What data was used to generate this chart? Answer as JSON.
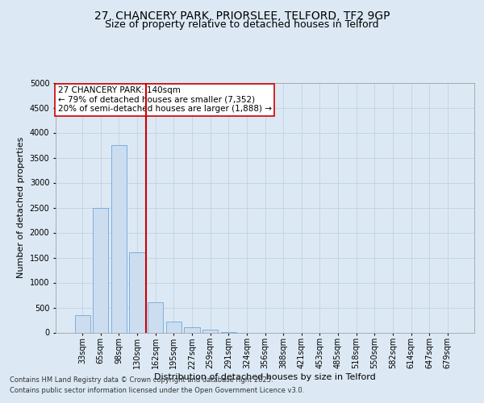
{
  "title1": "27, CHANCERY PARK, PRIORSLEE, TELFORD, TF2 9GP",
  "title2": "Size of property relative to detached houses in Telford",
  "xlabel": "Distribution of detached houses by size in Telford",
  "ylabel": "Number of detached properties",
  "footnote1": "Contains HM Land Registry data © Crown copyright and database right 2025.",
  "footnote2": "Contains public sector information licensed under the Open Government Licence v3.0.",
  "annotation_line1": "27 CHANCERY PARK: 140sqm",
  "annotation_line2": "← 79% of detached houses are smaller (7,352)",
  "annotation_line3": "20% of semi-detached houses are larger (1,888) →",
  "bar_color": "#ccddf0",
  "bar_edge_color": "#5b9bd5",
  "vline_color": "#cc0000",
  "vline_x": 3.5,
  "background_color": "#dce9f5",
  "categories": [
    "33sqm",
    "65sqm",
    "98sqm",
    "130sqm",
    "162sqm",
    "195sqm",
    "227sqm",
    "259sqm",
    "291sqm",
    "324sqm",
    "356sqm",
    "388sqm",
    "421sqm",
    "453sqm",
    "485sqm",
    "518sqm",
    "550sqm",
    "582sqm",
    "614sqm",
    "647sqm",
    "679sqm"
  ],
  "values": [
    350,
    2500,
    3750,
    1600,
    600,
    210,
    100,
    50,
    5,
    0,
    0,
    0,
    0,
    0,
    0,
    0,
    0,
    0,
    0,
    0,
    0
  ],
  "ylim": [
    0,
    5000
  ],
  "yticks": [
    0,
    500,
    1000,
    1500,
    2000,
    2500,
    3000,
    3500,
    4000,
    4500,
    5000
  ],
  "grid_color": "#b8cfe0",
  "title_fontsize": 10,
  "subtitle_fontsize": 9,
  "footnote_fontsize": 6,
  "ylabel_fontsize": 8,
  "xlabel_fontsize": 8,
  "tick_fontsize": 7,
  "annotation_fontsize": 7.5
}
